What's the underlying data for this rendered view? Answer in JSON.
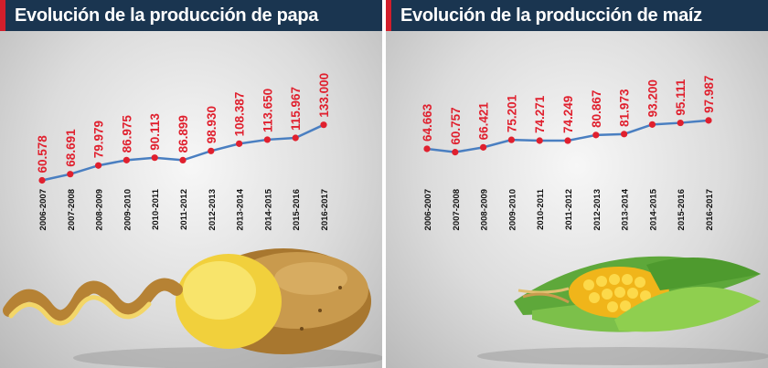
{
  "panels": [
    {
      "title": "Evolución de la producción de papa"
    },
    {
      "title": "Evolución de la producción de maíz"
    }
  ],
  "colors": {
    "line": "#4a7fc1",
    "point": "#e0202e",
    "value_text": "#e0202e",
    "title_bar": "#1a3550",
    "accent": "#d21e2b"
  },
  "chart_data": [
    {
      "type": "line",
      "title": "Evolución de la producción de papa",
      "categories": [
        "2006-2007",
        "2007-2008",
        "2008-2009",
        "2009-2010",
        "2010-2011",
        "2011-2012",
        "2012-2013",
        "2013-2014",
        "2014-2015",
        "2015-2016",
        "2016-2017"
      ],
      "values": [
        60578,
        68691,
        79979,
        86975,
        90113,
        86899,
        98930,
        108387,
        113650,
        115967,
        133000
      ],
      "labels": [
        "60.578",
        "68.691",
        "79.979",
        "86.975",
        "90.113",
        "86.899",
        "98.930",
        "108.387",
        "113.650",
        "115.967",
        "133.000"
      ],
      "ylim": [
        60000,
        135000
      ],
      "grid": false,
      "legend": "none"
    },
    {
      "type": "line",
      "title": "Evolución de la producción de maíz",
      "categories": [
        "2006-2007",
        "2007-2008",
        "2008-2009",
        "2009-2010",
        "2010-2011",
        "2011-2012",
        "2012-2013",
        "2013-2014",
        "2014-2015",
        "2015-2016",
        "2016-2017"
      ],
      "values": [
        64663,
        60757,
        66421,
        75201,
        74271,
        74249,
        80867,
        81973,
        93200,
        95111,
        97987
      ],
      "labels": [
        "64.663",
        "60.757",
        "66.421",
        "75.201",
        "74.271",
        "74.249",
        "80.867",
        "81.973",
        "93.200",
        "95.111",
        "97.987"
      ],
      "ylim": [
        55000,
        100000
      ],
      "grid": false,
      "legend": "none"
    }
  ],
  "illustrations": [
    "potato-illustration",
    "corn-illustration"
  ]
}
